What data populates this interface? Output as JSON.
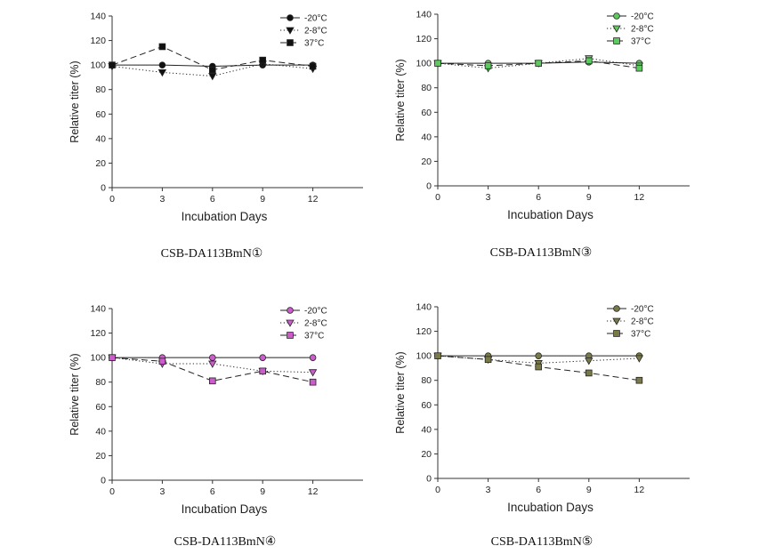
{
  "chart_data": [
    {
      "type": "line",
      "caption": "CSB-DA113BmN①",
      "xlabel": "Incubation Days",
      "ylabel": "Relative titer (%)",
      "x": [
        0,
        3,
        6,
        9,
        12
      ],
      "xlim": [
        0,
        15
      ],
      "ylim": [
        0,
        140
      ],
      "xticks": [
        0,
        3,
        6,
        9,
        12
      ],
      "yticks": [
        0,
        20,
        40,
        60,
        80,
        100,
        120,
        140
      ],
      "legend_position": "top-right",
      "marker_color": "#111111",
      "series": [
        {
          "name": "-20°C",
          "values": [
            100,
            100,
            99,
            100,
            100
          ],
          "marker": "circle",
          "dash": "solid"
        },
        {
          "name": "2-8°C",
          "values": [
            99,
            94,
            91,
            101,
            97
          ],
          "marker": "triangle-down",
          "dash": "dotted"
        },
        {
          "name": "37°C",
          "values": [
            100,
            115,
            96,
            104,
            99
          ],
          "marker": "square",
          "dash": "dashed"
        }
      ]
    },
    {
      "type": "line",
      "caption": "CSB-DA113BmN③",
      "xlabel": "Incubation Days",
      "ylabel": "Relative titer (%)",
      "x": [
        0,
        3,
        6,
        9,
        12
      ],
      "xlim": [
        0,
        15
      ],
      "ylim": [
        0,
        140
      ],
      "xticks": [
        0,
        3,
        6,
        9,
        12
      ],
      "yticks": [
        0,
        20,
        40,
        60,
        80,
        100,
        120,
        140
      ],
      "legend_position": "top-right",
      "marker_color": "#5ec95e",
      "series": [
        {
          "name": "-20°C",
          "values": [
            100,
            100,
            100,
            101,
            100
          ],
          "marker": "circle",
          "dash": "solid"
        },
        {
          "name": "2-8°C",
          "values": [
            100,
            96,
            100,
            104,
            98
          ],
          "marker": "triangle-down",
          "dash": "dotted"
        },
        {
          "name": "37°C",
          "values": [
            100,
            98,
            100,
            102,
            96
          ],
          "marker": "square",
          "dash": "dashed"
        }
      ]
    },
    {
      "type": "line",
      "caption": "CSB-DA113BmN④",
      "xlabel": "Incubation Days",
      "ylabel": "Relative titer (%)",
      "x": [
        0,
        3,
        6,
        9,
        12
      ],
      "xlim": [
        0,
        15
      ],
      "ylim": [
        0,
        140
      ],
      "xticks": [
        0,
        3,
        6,
        9,
        12
      ],
      "yticks": [
        0,
        20,
        40,
        60,
        80,
        100,
        120,
        140
      ],
      "legend_position": "top-right",
      "marker_color": "#cc5ccc",
      "series": [
        {
          "name": "-20°C",
          "values": [
            100,
            100,
            100,
            100,
            100
          ],
          "marker": "circle",
          "dash": "solid"
        },
        {
          "name": "2-8°C",
          "values": [
            100,
            95,
            95,
            89,
            88
          ],
          "marker": "triangle-down",
          "dash": "dotted"
        },
        {
          "name": "37°C",
          "values": [
            100,
            97,
            81,
            89,
            80
          ],
          "marker": "square",
          "dash": "dashed"
        }
      ]
    },
    {
      "type": "line",
      "caption": "CSB-DA113BmN⑤",
      "xlabel": "Incubation Days",
      "ylabel": "Relative titer (%)",
      "x": [
        0,
        3,
        6,
        9,
        12
      ],
      "xlim": [
        0,
        15
      ],
      "ylim": [
        0,
        140
      ],
      "xticks": [
        0,
        3,
        6,
        9,
        12
      ],
      "yticks": [
        0,
        20,
        40,
        60,
        80,
        100,
        120,
        140
      ],
      "legend_position": "top-right",
      "marker_color": "#7a7a48",
      "series": [
        {
          "name": "-20°C",
          "values": [
            100,
            100,
            100,
            100,
            100
          ],
          "marker": "circle",
          "dash": "solid"
        },
        {
          "name": "2-8°C",
          "values": [
            100,
            97,
            94,
            96,
            98
          ],
          "marker": "triangle-down",
          "dash": "dotted"
        },
        {
          "name": "37°C",
          "values": [
            100,
            97,
            91,
            86,
            80
          ],
          "marker": "square",
          "dash": "dashed"
        }
      ]
    }
  ]
}
